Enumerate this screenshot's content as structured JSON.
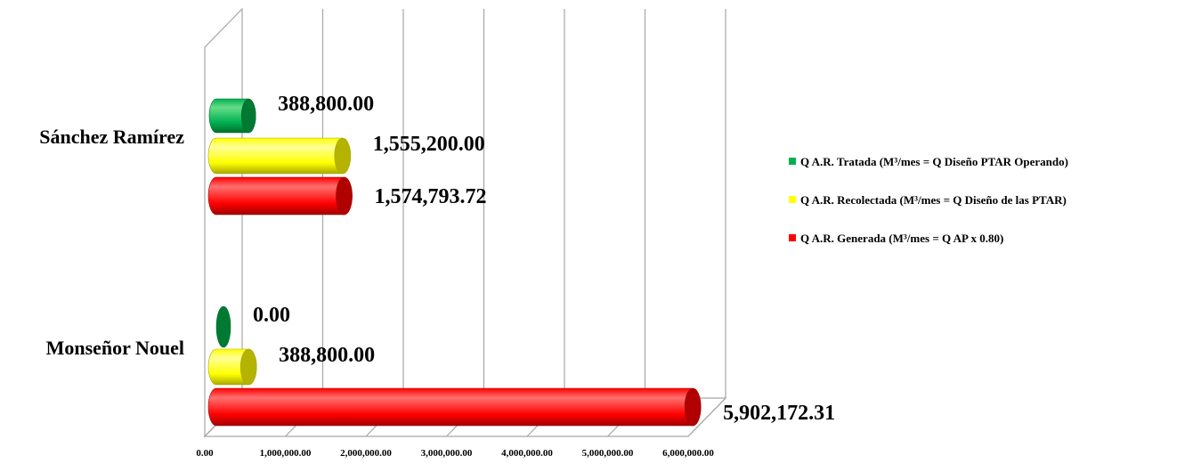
{
  "chart_data": {
    "type": "bar",
    "orientation": "horizontal",
    "style": "3d-cylinder",
    "categories": [
      "Monseñor Nouel",
      "Sánchez Ramírez"
    ],
    "series": [
      {
        "name": "Q A.R. Generada (M³/mes = Q AP x 0.80)",
        "color": "#ff0000",
        "values": [
          5902172.31,
          1574793.72
        ],
        "labels": [
          "5,902,172.31",
          "1,574,793.72"
        ]
      },
      {
        "name": "Q A.R. Recolectada (M³/mes = Q Diseño de las PTAR)",
        "color": "#ffff00",
        "values": [
          388800.0,
          1555200.0
        ],
        "labels": [
          "388,800.00",
          "1,555,200.00"
        ]
      },
      {
        "name": "Q A.R. Tratada (M³/mes = Q Diseño PTAR Operando)",
        "color": "#00b050",
        "values": [
          0.0,
          388800.0
        ],
        "labels": [
          "0.00",
          "388,800.00"
        ]
      }
    ],
    "xlim": [
      0,
      6000000
    ],
    "xticks": [
      "0.00",
      "1,000,000.00",
      "2,000,000.00",
      "3,000,000.00",
      "4,000,000.00",
      "5,000,000.00",
      "6,000,000.00"
    ],
    "grid": true,
    "legend_position": "right",
    "title": "",
    "xlabel": "",
    "ylabel": ""
  }
}
